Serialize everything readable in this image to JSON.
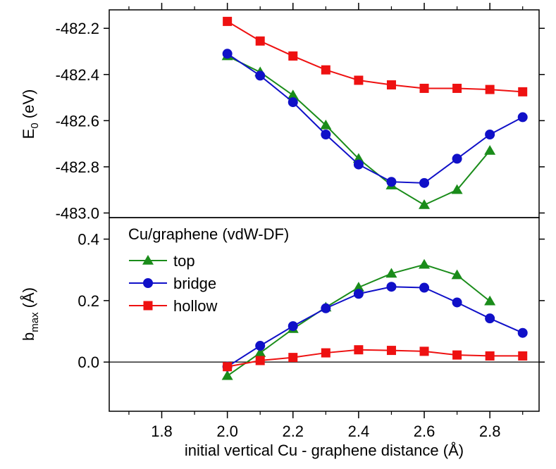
{
  "chart_data": {
    "type": "line",
    "xlabel": "initial vertical Cu - graphene distance (Å)",
    "x_ticks": [
      "1.8",
      "2.0",
      "2.2",
      "2.4",
      "2.6",
      "2.8"
    ],
    "xlim": [
      1.64,
      2.95
    ],
    "colors": {
      "top": "#1a8c1a",
      "bridge": "#1010c8",
      "hollow": "#ee1111"
    },
    "panels": [
      {
        "id": "top-panel",
        "ylabel": "E",
        "ylabel_sub": "0",
        "ylabel_unit": " (eV)",
        "ylim": [
          -483.02,
          -482.12
        ],
        "y_ticks": [
          "-482.2",
          "-482.4",
          "-482.6",
          "-482.8",
          "-483.0"
        ],
        "series": [
          {
            "key": "top",
            "marker": "triangle",
            "x": [
              2.0,
              2.1,
              2.2,
              2.3,
              2.4,
              2.5,
              2.6,
              2.7,
              2.8
            ],
            "y": [
              -482.32,
              -482.39,
              -482.49,
              -482.62,
              -482.765,
              -482.88,
              -482.965,
              -482.9,
              -482.73
            ]
          },
          {
            "key": "bridge",
            "marker": "circle",
            "x": [
              2.0,
              2.1,
              2.2,
              2.3,
              2.4,
              2.5,
              2.6,
              2.7,
              2.8,
              2.9
            ],
            "y": [
              -482.31,
              -482.405,
              -482.52,
              -482.66,
              -482.79,
              -482.865,
              -482.87,
              -482.765,
              -482.66,
              -482.585
            ]
          },
          {
            "key": "hollow",
            "marker": "square",
            "x": [
              2.0,
              2.1,
              2.2,
              2.3,
              2.4,
              2.5,
              2.6,
              2.7,
              2.8,
              2.9
            ],
            "y": [
              -482.17,
              -482.255,
              -482.32,
              -482.38,
              -482.425,
              -482.445,
              -482.46,
              -482.46,
              -482.465,
              -482.475
            ]
          }
        ]
      },
      {
        "id": "bottom-panel",
        "ylabel": "b",
        "ylabel_sub": "max",
        "ylabel_unit": " (Å)",
        "ylim": [
          -0.16,
          0.47
        ],
        "y_ticks": [
          "0.0",
          "0.2",
          "0.4"
        ],
        "zero_line": true,
        "series": [
          {
            "key": "top",
            "name": "top",
            "marker": "triangle",
            "x": [
              2.0,
              2.1,
              2.2,
              2.3,
              2.4,
              2.5,
              2.6,
              2.7,
              2.8
            ],
            "y": [
              -0.045,
              0.03,
              0.108,
              0.178,
              0.243,
              0.288,
              0.317,
              0.283,
              0.198
            ]
          },
          {
            "key": "bridge",
            "name": "bridge",
            "marker": "circle",
            "x": [
              2.0,
              2.1,
              2.2,
              2.3,
              2.4,
              2.5,
              2.6,
              2.7,
              2.8,
              2.9
            ],
            "y": [
              -0.015,
              0.053,
              0.117,
              0.175,
              0.222,
              0.245,
              0.242,
              0.194,
              0.142,
              0.095
            ]
          },
          {
            "key": "hollow",
            "name": "hollow",
            "marker": "square",
            "x": [
              2.0,
              2.1,
              2.2,
              2.3,
              2.4,
              2.5,
              2.6,
              2.7,
              2.8,
              2.9
            ],
            "y": [
              -0.015,
              0.005,
              0.015,
              0.03,
              0.04,
              0.038,
              0.035,
              0.023,
              0.02,
              0.02
            ]
          }
        ]
      }
    ],
    "legend": {
      "title": "Cu/graphene (vdW-DF)",
      "placement": "bottom-panel-top-left",
      "entries": [
        {
          "key": "top",
          "label": "top",
          "marker": "triangle"
        },
        {
          "key": "bridge",
          "label": "bridge",
          "marker": "circle"
        },
        {
          "key": "hollow",
          "label": "hollow",
          "marker": "square"
        }
      ]
    },
    "grid": false
  }
}
